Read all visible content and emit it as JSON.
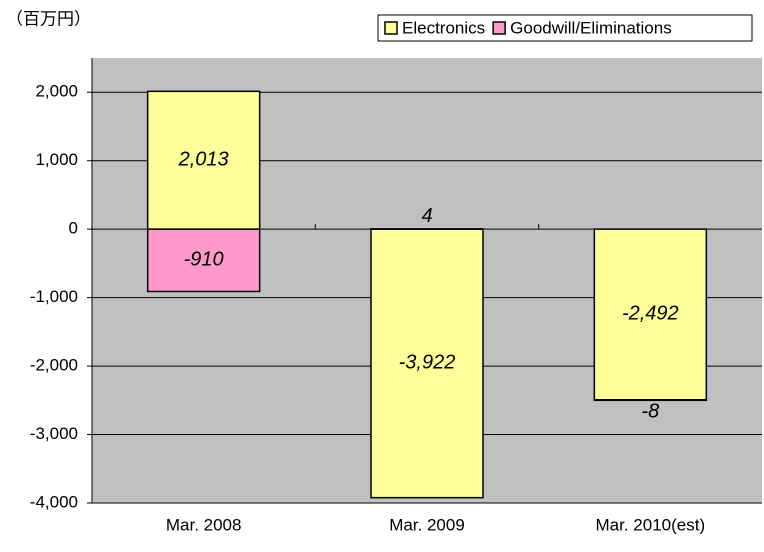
{
  "chart_data": {
    "type": "bar",
    "stacked": true,
    "unit_label": "（百万円）",
    "categories": [
      "Mar. 2008",
      "Mar. 2009",
      "Mar. 2010(est)"
    ],
    "series": [
      {
        "name": "Electronics",
        "color": "#ffff99",
        "values": [
          2013,
          -3922,
          -2492
        ],
        "value_labels": [
          "2,013",
          "-3,922",
          "-2,492"
        ]
      },
      {
        "name": "Goodwill/Eliminations",
        "color": "#ff99cc",
        "values": [
          -910,
          4,
          -8
        ]
      }
    ],
    "ylim": [
      -4000,
      2500
    ],
    "yticks": [
      {
        "value": -4000,
        "label": "-4,000"
      },
      {
        "value": -3000,
        "label": "-3,000"
      },
      {
        "value": -2000,
        "label": "-2,000"
      },
      {
        "value": -1000,
        "label": "-1,000"
      },
      0,
      {
        "value": 1000,
        "label": "1,000"
      },
      {
        "value": 2000,
        "label": "2,000"
      }
    ],
    "grid": true,
    "legend": "top-right",
    "plot_background": "#c0c0c0"
  }
}
